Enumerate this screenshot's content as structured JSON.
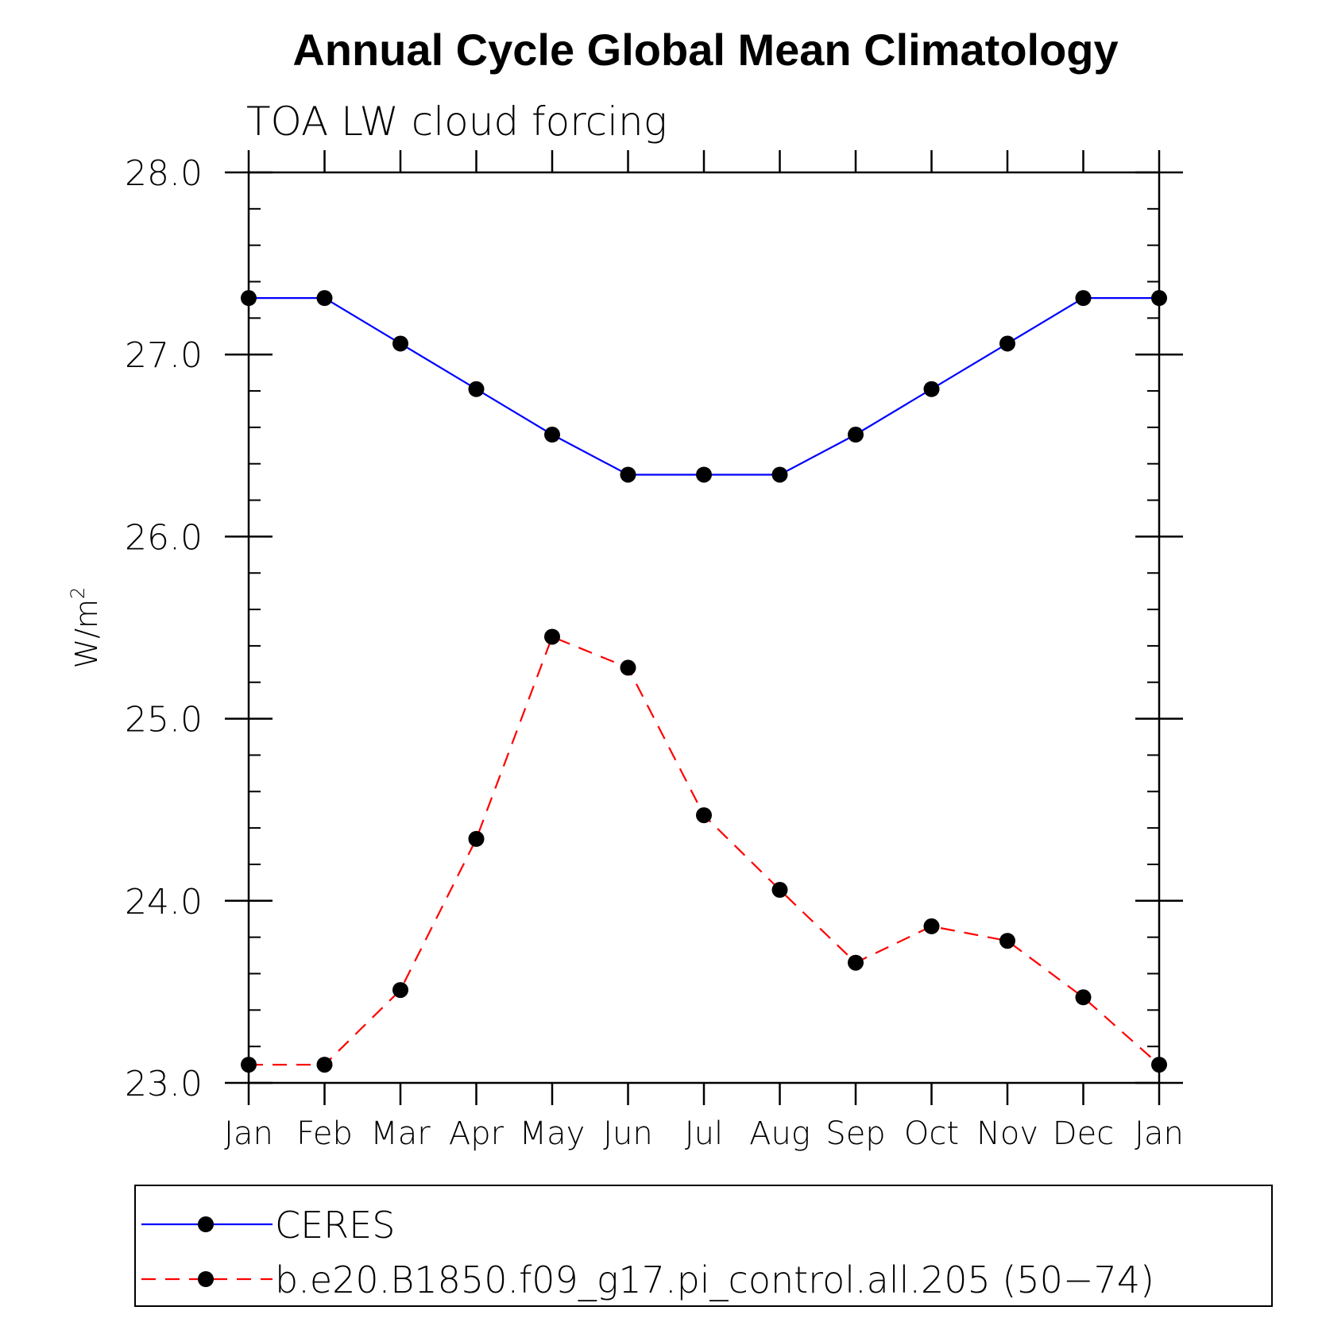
{
  "chart_data": {
    "type": "line",
    "title": "Annual Cycle Global Mean Climatology",
    "subtitle": "TOA LW cloud forcing",
    "ylabel": "W/m",
    "ylabel_superscript": "2",
    "xlabel": "",
    "categories": [
      "Jan",
      "Feb",
      "Mar",
      "Apr",
      "May",
      "Jun",
      "Jul",
      "Aug",
      "Sep",
      "Oct",
      "Nov",
      "Dec",
      "Jan"
    ],
    "ylim": [
      23.0,
      28.0
    ],
    "yticks": [
      23.0,
      24.0,
      25.0,
      26.0,
      27.0,
      28.0
    ],
    "ytick_labels": [
      "23.0",
      "24.0",
      "25.0",
      "26.0",
      "27.0",
      "28.0"
    ],
    "y_minor_step": 0.2,
    "grid": false,
    "legend_position": "bottom",
    "series": [
      {
        "name": "CERES",
        "color": "#0000ff",
        "line_style": "solid",
        "marker": "filled-circle",
        "values": [
          27.31,
          27.31,
          27.06,
          26.81,
          26.56,
          26.34,
          26.34,
          26.34,
          26.56,
          26.81,
          27.06,
          27.31,
          27.31
        ]
      },
      {
        "name": "b.e20.B1850.f09_g17.pi_control.all.205 (50−74)",
        "color": "#ff0000",
        "line_style": "dashed",
        "marker": "filled-circle",
        "values": [
          23.1,
          23.1,
          23.51,
          24.34,
          25.45,
          25.28,
          24.47,
          24.06,
          23.66,
          23.86,
          23.78,
          23.47,
          23.1
        ]
      }
    ]
  }
}
